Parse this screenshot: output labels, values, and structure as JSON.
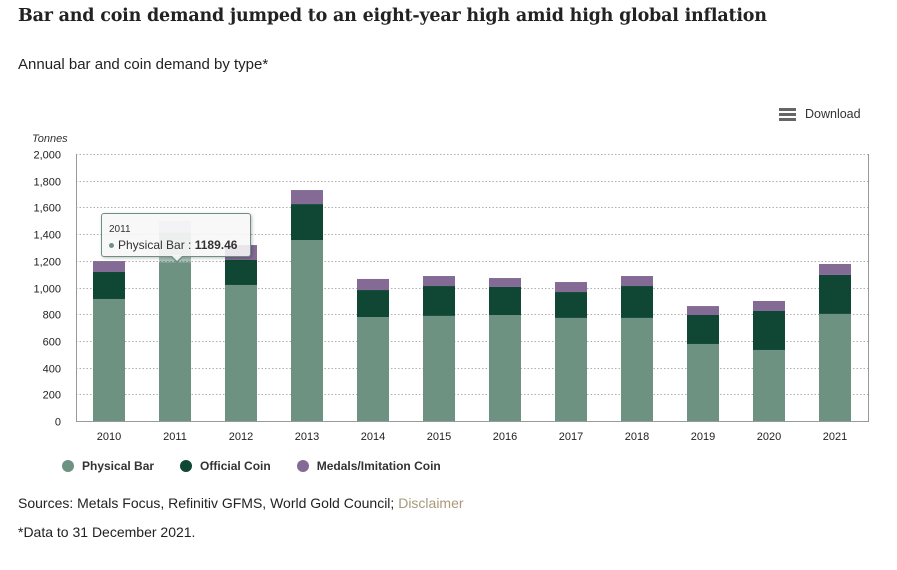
{
  "header": {
    "title": "Bar and coin demand jumped to an eight-year high amid high global inflation",
    "subtitle": "Annual bar and coin demand by type*"
  },
  "toolbar": {
    "menu_icon": "hamburger-menu-icon",
    "download_label": "Download"
  },
  "tooltip": {
    "year": "2011",
    "series": "Physical Bar",
    "separator": " : ",
    "value": "1189.46"
  },
  "footer": {
    "sources_text": "Sources: Metals Focus, Refinitiv GFMS, World Gold Council; ",
    "disclaimer_link": "Disclaimer",
    "footnote": "*Data to 31 December 2021."
  },
  "colors": {
    "physical_bar": "#6e9282",
    "official_coin": "#0f4634",
    "medals": "#836b96",
    "disclaimer_link": "#a89a7a"
  },
  "chart_data": {
    "type": "bar",
    "stacked": true,
    "title": "Annual bar and coin demand by type*",
    "xlabel": "",
    "ylabel": "Tonnes",
    "ylim": [
      0,
      2000
    ],
    "yticks": [
      0,
      200,
      400,
      600,
      800,
      1000,
      1200,
      1400,
      1600,
      1800,
      2000
    ],
    "ytick_labels": [
      "0",
      "200",
      "400",
      "600",
      "800",
      "1,000",
      "1,200",
      "1,400",
      "1,600",
      "1,800",
      "2,000"
    ],
    "grid": true,
    "legend_position": "bottom-left",
    "categories": [
      "2010",
      "2011",
      "2012",
      "2013",
      "2014",
      "2015",
      "2016",
      "2017",
      "2018",
      "2019",
      "2020",
      "2021"
    ],
    "series": [
      {
        "name": "Physical Bar",
        "color": "#6e9282",
        "values": [
          914,
          1189.46,
          1019,
          1355,
          779,
          787,
          794,
          772,
          772,
          577,
          532,
          802
        ]
      },
      {
        "name": "Official Coin",
        "color": "#0f4634",
        "values": [
          202,
          225,
          187,
          270,
          202,
          224,
          210,
          194,
          239,
          217,
          292,
          292
        ]
      },
      {
        "name": "Medals/Imitation Coin",
        "color": "#836b96",
        "values": [
          82,
          84,
          112,
          105,
          83,
          75,
          67,
          75,
          75,
          67,
          75,
          82
        ]
      }
    ],
    "highlighted": {
      "category": "2011",
      "series": "Physical Bar",
      "value": 1189.46
    }
  }
}
